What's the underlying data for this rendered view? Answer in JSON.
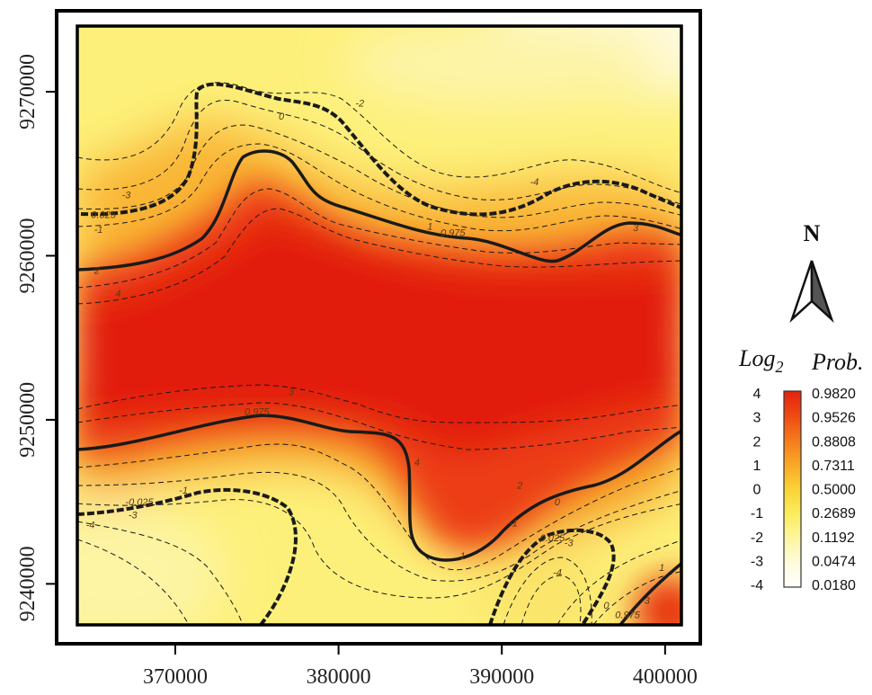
{
  "map": {
    "x_axis": {
      "ticks": [
        {
          "value": 370000,
          "label": "370000"
        },
        {
          "value": 380000,
          "label": "380000"
        },
        {
          "value": 390000,
          "label": "390000"
        },
        {
          "value": 400000,
          "label": "400000"
        }
      ],
      "range": [
        364000,
        401000
      ]
    },
    "y_axis": {
      "ticks": [
        {
          "value": 9240000,
          "label": "9240000"
        },
        {
          "value": 9250000,
          "label": "9250000"
        },
        {
          "value": 9260000,
          "label": "9260000"
        },
        {
          "value": 9270000,
          "label": "9270000"
        }
      ],
      "range": [
        9237500,
        9274000
      ]
    },
    "contour_labels": [
      {
        "text": "0",
        "x": 376500,
        "y": 9268300
      },
      {
        "text": "-2",
        "x": 381300,
        "y": 9269100
      },
      {
        "text": "-3",
        "x": 367000,
        "y": 9263500
      },
      {
        "text": "0.025",
        "x": 365600,
        "y": 9262300
      },
      {
        "text": "-1",
        "x": 365300,
        "y": 9261400
      },
      {
        "text": "2",
        "x": 365200,
        "y": 9258900
      },
      {
        "text": "4",
        "x": 366500,
        "y": 9257500
      },
      {
        "text": "-4",
        "x": 392000,
        "y": 9264300
      },
      {
        "text": "1",
        "x": 385600,
        "y": 9261600
      },
      {
        "text": "0.975",
        "x": 387000,
        "y": 9261200
      },
      {
        "text": "3",
        "x": 398200,
        "y": 9261500
      },
      {
        "text": "3",
        "x": 377100,
        "y": 9251500
      },
      {
        "text": "0.975",
        "x": 375000,
        "y": 9250300
      },
      {
        "text": "4",
        "x": 384800,
        "y": 9247200
      },
      {
        "text": "-1",
        "x": 370500,
        "y": 9245500
      },
      {
        "text": "-0.025",
        "x": 367800,
        "y": 9244800
      },
      {
        "text": "-3",
        "x": 367400,
        "y": 9244000
      },
      {
        "text": "-4",
        "x": 364800,
        "y": 9243400
      },
      {
        "text": "2",
        "x": 391100,
        "y": 9245800
      },
      {
        "text": "0",
        "x": 393400,
        "y": 9244800
      },
      {
        "text": "1",
        "x": 387600,
        "y": 9241500
      },
      {
        "text": "-1",
        "x": 390700,
        "y": 9243500
      },
      {
        "text": "0.025",
        "x": 393100,
        "y": 9242600
      },
      {
        "text": "-3",
        "x": 394100,
        "y": 9242300
      },
      {
        "text": "-4",
        "x": 393400,
        "y": 9240500
      },
      {
        "text": "0",
        "x": 396400,
        "y": 9238500
      },
      {
        "text": "0.975",
        "x": 397700,
        "y": 9237900
      },
      {
        "text": "3",
        "x": 398900,
        "y": 9238800
      },
      {
        "text": "1",
        "x": 399800,
        "y": 9240800
      }
    ]
  },
  "north_arrow": {
    "label": "N"
  },
  "legend": {
    "header_log": "Log",
    "header_sub": "2",
    "header_prob": "Prob.",
    "entries": [
      {
        "log": "4",
        "prob": "0.9820"
      },
      {
        "log": "3",
        "prob": "0.9526"
      },
      {
        "log": "2",
        "prob": "0.8808"
      },
      {
        "log": "1",
        "prob": "0.7311"
      },
      {
        "log": "0",
        "prob": "0.5000"
      },
      {
        "log": "-1",
        "prob": "0.2689"
      },
      {
        "log": "-2",
        "prob": "0.1192"
      },
      {
        "log": "-3",
        "prob": "0.0474"
      },
      {
        "log": "-4",
        "prob": "0.0180"
      }
    ],
    "colors": [
      "#e4220e",
      "#ee4a12",
      "#f57a1c",
      "#f9a826",
      "#fbd236",
      "#fbec5c",
      "#fcf6a0",
      "#fefbdc",
      "#ffffff"
    ]
  },
  "colors": {
    "frame": "#000000",
    "background": "#fdfdd8",
    "contour": "#1a1a1a"
  }
}
